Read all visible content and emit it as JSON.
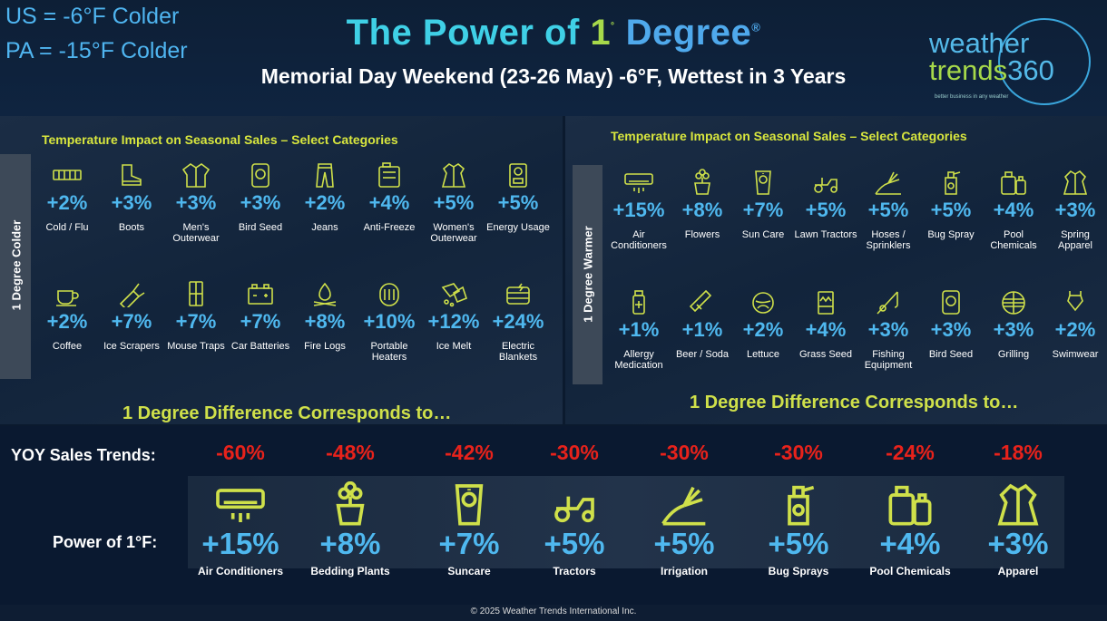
{
  "header": {
    "us_line": "US = -6°F Colder",
    "pa_line": "PA = -15°F Colder",
    "title_part1": "The Power of ",
    "title_part2": "1",
    "title_deg": "˚",
    "title_part3": " Degree",
    "title_reg": "®",
    "subtitle": "Memorial Day Weekend (23-26  May) -6°F, Wettest in 3 Years"
  },
  "logo": {
    "line1": "weather",
    "line2a": "trends",
    "line2b": "360",
    "tagline": "better business in any weather"
  },
  "colder": {
    "side_label": "1 Degree Colder",
    "section_title": "Temperature Impact on Seasonal Sales – Select Categories",
    "footer_text": "1 Degree Difference Corresponds to…",
    "items": [
      {
        "icon": "thermometer-bar-icon",
        "pct": "+2%",
        "label": "Cold / Flu"
      },
      {
        "icon": "boot-icon",
        "pct": "+3%",
        "label": "Boots"
      },
      {
        "icon": "jacket-icon",
        "pct": "+3%",
        "label": "Men's Outerwear"
      },
      {
        "icon": "bird-seed-icon",
        "pct": "+3%",
        "label": "Bird Seed"
      },
      {
        "icon": "jeans-icon",
        "pct": "+2%",
        "label": "Jeans"
      },
      {
        "icon": "antifreeze-icon",
        "pct": "+4%",
        "label": "Anti-Freeze"
      },
      {
        "icon": "womens-coat-icon",
        "pct": "+5%",
        "label": "Women's Outerwear"
      },
      {
        "icon": "energy-meter-icon",
        "pct": "+5%",
        "label": "Energy Usage"
      },
      {
        "icon": "coffee-icon",
        "pct": "+2%",
        "label": "Coffee"
      },
      {
        "icon": "ice-scraper-icon",
        "pct": "+7%",
        "label": "Ice Scrapers"
      },
      {
        "icon": "mouse-trap-icon",
        "pct": "+7%",
        "label": "Mouse Traps"
      },
      {
        "icon": "car-battery-icon",
        "pct": "+7%",
        "label": "Car Batteries"
      },
      {
        "icon": "fire-logs-icon",
        "pct": "+8%",
        "label": "Fire Logs"
      },
      {
        "icon": "heater-icon",
        "pct": "+10%",
        "label": "Portable Heaters"
      },
      {
        "icon": "ice-melt-icon",
        "pct": "+12%",
        "label": "Ice Melt"
      },
      {
        "icon": "electric-blanket-icon",
        "pct": "+24%",
        "label": "Electric Blankets"
      }
    ]
  },
  "warmer": {
    "side_label": "1 Degree Warmer",
    "section_title": "Temperature Impact on Seasonal Sales – Select Categories",
    "footer_text": "1 Degree Difference Corresponds to…",
    "items": [
      {
        "icon": "air-conditioner-icon",
        "pct": "+15%",
        "label": "Air Conditioners"
      },
      {
        "icon": "flowers-icon",
        "pct": "+8%",
        "label": "Flowers"
      },
      {
        "icon": "sunscreen-icon",
        "pct": "+7%",
        "label": "Sun Care"
      },
      {
        "icon": "lawn-tractor-icon",
        "pct": "+5%",
        "label": "Lawn Tractors"
      },
      {
        "icon": "sprinkler-icon",
        "pct": "+5%",
        "label": "Hoses / Sprinklers"
      },
      {
        "icon": "bug-spray-icon",
        "pct": "+5%",
        "label": "Bug Spray"
      },
      {
        "icon": "pool-chemicals-icon",
        "pct": "+4%",
        "label": "Pool Chemicals"
      },
      {
        "icon": "raincoat-icon",
        "pct": "+3%",
        "label": "Spring Apparel"
      },
      {
        "icon": "allergy-medication-icon",
        "pct": "+1%",
        "label": "Allergy Medication"
      },
      {
        "icon": "beer-bottle-icon",
        "pct": "+1%",
        "label": "Beer / Soda"
      },
      {
        "icon": "lettuce-icon",
        "pct": "+2%",
        "label": "Lettuce"
      },
      {
        "icon": "grass-seed-icon",
        "pct": "+4%",
        "label": "Grass Seed"
      },
      {
        "icon": "fishing-rod-icon",
        "pct": "+3%",
        "label": "Fishing Equipment"
      },
      {
        "icon": "bird-seed-icon",
        "pct": "+3%",
        "label": "Bird Seed"
      },
      {
        "icon": "grill-icon",
        "pct": "+3%",
        "label": "Grilling"
      },
      {
        "icon": "swimsuit-icon",
        "pct": "+2%",
        "label": "Swimwear"
      }
    ]
  },
  "summary": {
    "yoy_label": "YOY Sales Trends:",
    "power_label": "Power of 1°F:",
    "columns": [
      {
        "icon": "air-conditioner-icon",
        "yoy": "-60%",
        "pct": "+15%",
        "name": "Air Conditioners"
      },
      {
        "icon": "flowers-icon",
        "yoy": "-48%",
        "pct": "+8%",
        "name": "Bedding Plants"
      },
      {
        "icon": "sunscreen-icon",
        "yoy": "-42%",
        "pct": "+7%",
        "name": "Suncare"
      },
      {
        "icon": "lawn-tractor-icon",
        "yoy": "-30%",
        "pct": "+5%",
        "name": "Tractors"
      },
      {
        "icon": "sprinkler-icon",
        "yoy": "-30%",
        "pct": "+5%",
        "name": "Irrigation"
      },
      {
        "icon": "bug-spray-icon",
        "yoy": "-30%",
        "pct": "+5%",
        "name": "Bug Sprays"
      },
      {
        "icon": "pool-chemicals-icon",
        "yoy": "-24%",
        "pct": "+4%",
        "name": "Pool Chemicals"
      },
      {
        "icon": "raincoat-icon",
        "yoy": "-18%",
        "pct": "+3%",
        "name": "Apparel"
      }
    ]
  },
  "footer": {
    "copyright": "© 2025 Weather Trends International Inc."
  },
  "colors": {
    "accent_blue": "#4fb8ef",
    "accent_green": "#cfe04a",
    "negative_red": "#e8221b"
  }
}
